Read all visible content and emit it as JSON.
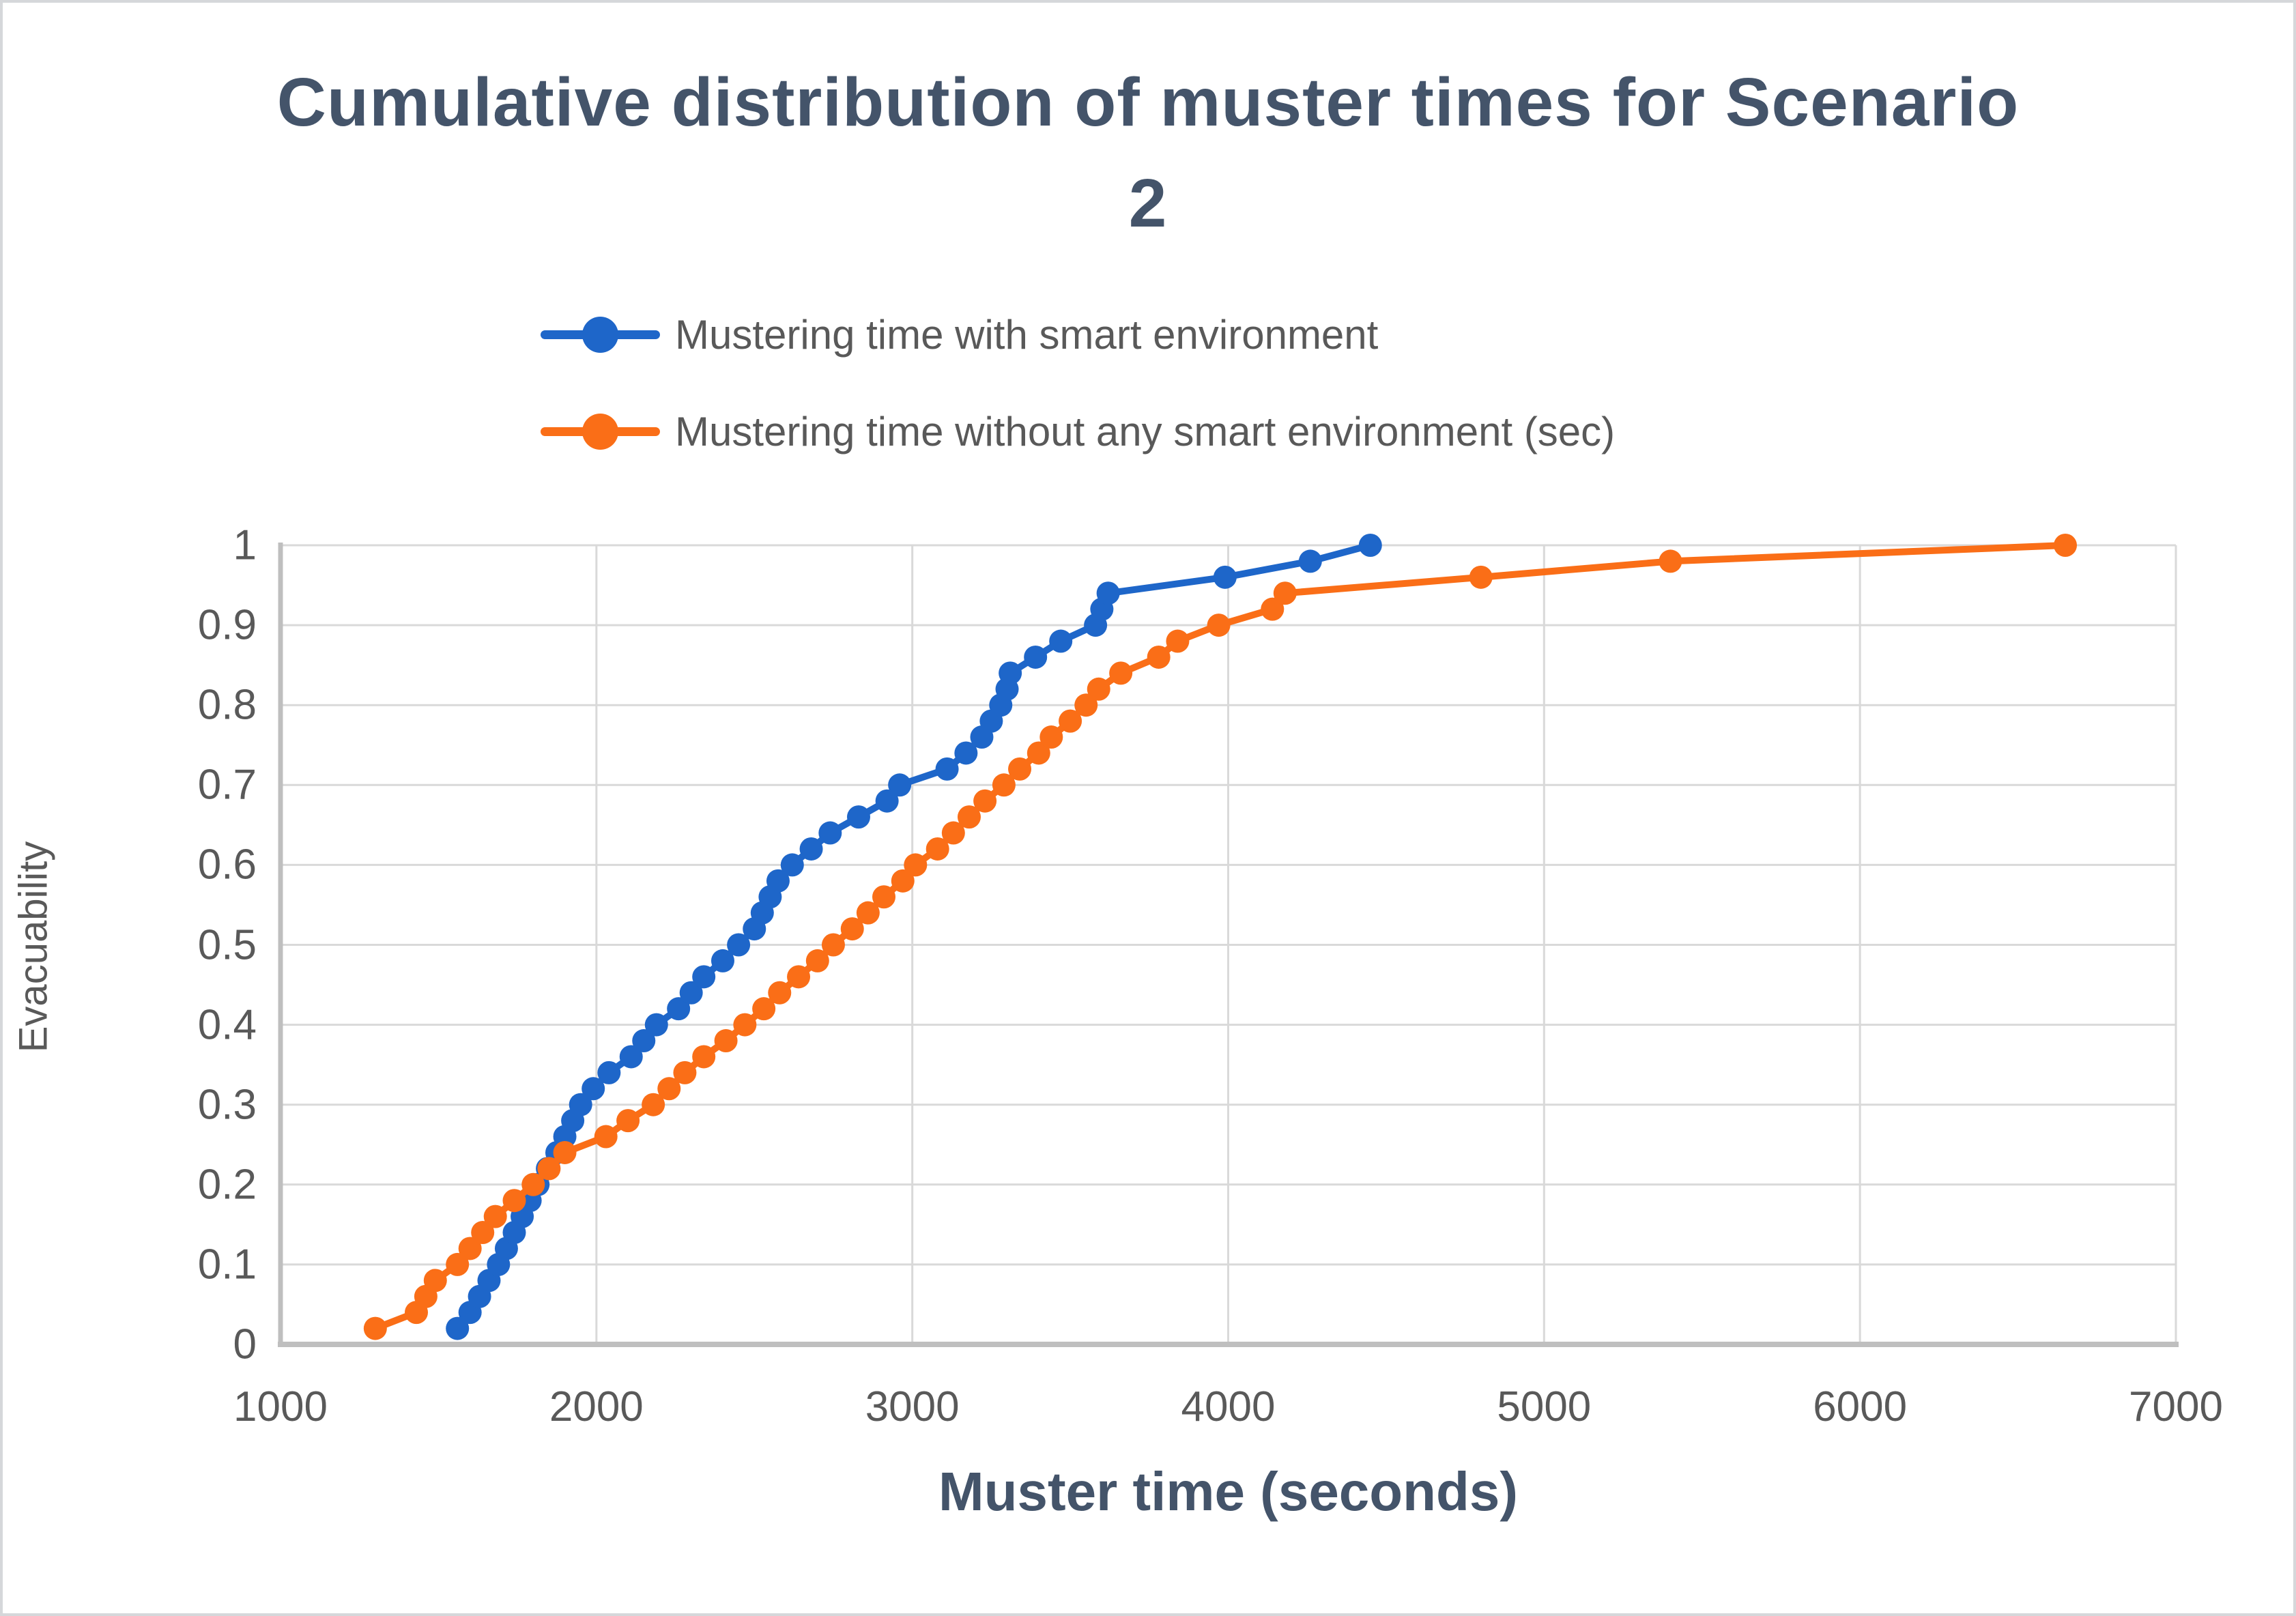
{
  "figure": {
    "title_line1": "Cumulative distribution of muster times for Scenario",
    "title_line2": "2",
    "title_color": "#44546A"
  },
  "legend": {
    "position": "top",
    "items": [
      {
        "label": "Mustering time with smart environment",
        "color": "#1E66C9"
      },
      {
        "label": "Mustering time without any smart environment (sec)",
        "color": "#FA6E17"
      }
    ]
  },
  "chart_data": {
    "type": "line",
    "title": "Cumulative distribution of muster times for Scenario 2",
    "xlabel": "Muster time (seconds)",
    "ylabel": "Evacuability",
    "xlim": [
      1000,
      7000
    ],
    "ylim": [
      0,
      1
    ],
    "x_ticks": [
      "1000",
      "2000",
      "3000",
      "4000",
      "5000",
      "6000",
      "7000"
    ],
    "x_tick_values": [
      1000,
      2000,
      3000,
      4000,
      5000,
      6000,
      7000
    ],
    "y_ticks": [
      "0",
      "0.1",
      "0.2",
      "0.3",
      "0.4",
      "0.5",
      "0.6",
      "0.7",
      "0.8",
      "0.9",
      "1"
    ],
    "y_tick_values": [
      0,
      0.1,
      0.2,
      0.3,
      0.4,
      0.5,
      0.6,
      0.7,
      0.8,
      0.9,
      1
    ],
    "grid": true,
    "gridline_color": "#D9D9D9",
    "axis_line_color": "#BFBFBF",
    "legend_position": "top",
    "series": [
      {
        "name": "Mustering time with smart environment",
        "color": "#1E66C9",
        "marker": "circle",
        "points": [
          [
            1560,
            0.02
          ],
          [
            1600,
            0.04
          ],
          [
            1630,
            0.06
          ],
          [
            1660,
            0.08
          ],
          [
            1690,
            0.1
          ],
          [
            1715,
            0.12
          ],
          [
            1740,
            0.14
          ],
          [
            1765,
            0.16
          ],
          [
            1790,
            0.18
          ],
          [
            1815,
            0.2
          ],
          [
            1845,
            0.22
          ],
          [
            1875,
            0.24
          ],
          [
            1900,
            0.26
          ],
          [
            1925,
            0.28
          ],
          [
            1950,
            0.3
          ],
          [
            1990,
            0.32
          ],
          [
            2040,
            0.34
          ],
          [
            2110,
            0.36
          ],
          [
            2150,
            0.38
          ],
          [
            2190,
            0.4
          ],
          [
            2260,
            0.42
          ],
          [
            2300,
            0.44
          ],
          [
            2340,
            0.46
          ],
          [
            2400,
            0.48
          ],
          [
            2450,
            0.5
          ],
          [
            2500,
            0.52
          ],
          [
            2525,
            0.54
          ],
          [
            2550,
            0.56
          ],
          [
            2575,
            0.58
          ],
          [
            2620,
            0.6
          ],
          [
            2680,
            0.62
          ],
          [
            2740,
            0.64
          ],
          [
            2830,
            0.66
          ],
          [
            2920,
            0.68
          ],
          [
            2960,
            0.7
          ],
          [
            3110,
            0.72
          ],
          [
            3170,
            0.74
          ],
          [
            3220,
            0.76
          ],
          [
            3250,
            0.78
          ],
          [
            3280,
            0.8
          ],
          [
            3300,
            0.82
          ],
          [
            3310,
            0.84
          ],
          [
            3390,
            0.86
          ],
          [
            3470,
            0.88
          ],
          [
            3580,
            0.9
          ],
          [
            3600,
            0.92
          ],
          [
            3620,
            0.94
          ],
          [
            3990,
            0.96
          ],
          [
            4260,
            0.98
          ],
          [
            4450,
            1.0
          ]
        ]
      },
      {
        "name": "Mustering time without any smart environment (sec)",
        "color": "#FA6E17",
        "marker": "circle",
        "points": [
          [
            1300,
            0.02
          ],
          [
            1430,
            0.04
          ],
          [
            1460,
            0.06
          ],
          [
            1490,
            0.08
          ],
          [
            1560,
            0.1
          ],
          [
            1600,
            0.12
          ],
          [
            1640,
            0.14
          ],
          [
            1680,
            0.16
          ],
          [
            1740,
            0.18
          ],
          [
            1800,
            0.2
          ],
          [
            1850,
            0.22
          ],
          [
            1900,
            0.24
          ],
          [
            2030,
            0.26
          ],
          [
            2100,
            0.28
          ],
          [
            2180,
            0.3
          ],
          [
            2230,
            0.32
          ],
          [
            2280,
            0.34
          ],
          [
            2340,
            0.36
          ],
          [
            2410,
            0.38
          ],
          [
            2470,
            0.4
          ],
          [
            2530,
            0.42
          ],
          [
            2580,
            0.44
          ],
          [
            2640,
            0.46
          ],
          [
            2700,
            0.48
          ],
          [
            2750,
            0.5
          ],
          [
            2810,
            0.52
          ],
          [
            2860,
            0.54
          ],
          [
            2910,
            0.56
          ],
          [
            2970,
            0.58
          ],
          [
            3010,
            0.6
          ],
          [
            3080,
            0.62
          ],
          [
            3130,
            0.64
          ],
          [
            3180,
            0.66
          ],
          [
            3230,
            0.68
          ],
          [
            3290,
            0.7
          ],
          [
            3340,
            0.72
          ],
          [
            3400,
            0.74
          ],
          [
            3440,
            0.76
          ],
          [
            3500,
            0.78
          ],
          [
            3550,
            0.8
          ],
          [
            3590,
            0.82
          ],
          [
            3660,
            0.84
          ],
          [
            3780,
            0.86
          ],
          [
            3840,
            0.88
          ],
          [
            3970,
            0.9
          ],
          [
            4140,
            0.92
          ],
          [
            4180,
            0.94
          ],
          [
            4800,
            0.96
          ],
          [
            5400,
            0.98
          ],
          [
            6650,
            1.0
          ]
        ]
      }
    ]
  }
}
